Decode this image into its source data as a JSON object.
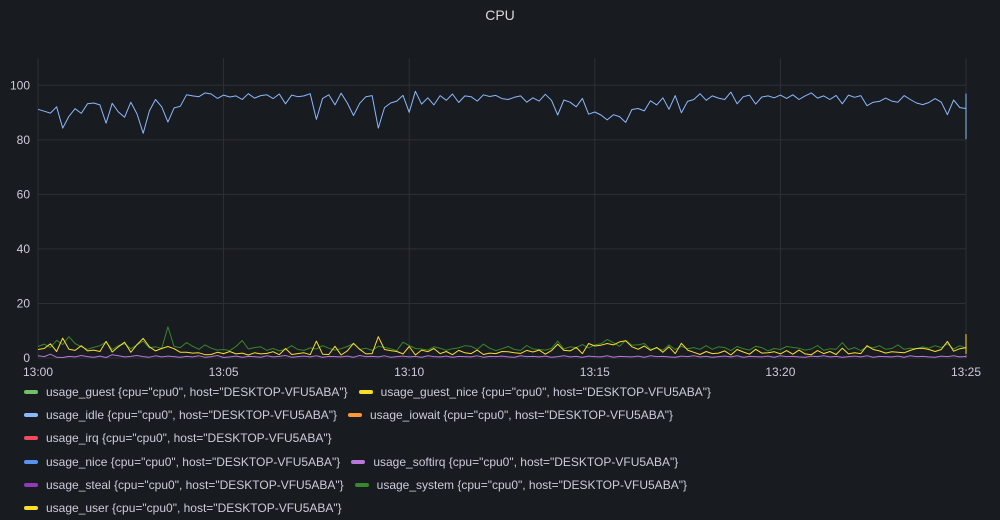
{
  "panel": {
    "title": "CPU"
  },
  "chart_data": {
    "type": "line",
    "title": "CPU",
    "x_ticks": [
      "13:00",
      "13:05",
      "13:10",
      "13:15",
      "13:20",
      "13:25"
    ],
    "y_ticks": [
      0,
      20,
      40,
      60,
      80,
      100
    ],
    "xlim_minutes": [
      0,
      25
    ],
    "ylim": [
      0,
      110
    ],
    "grid": true,
    "legend_position": "bottom",
    "sample_interval_seconds": 10,
    "series": [
      {
        "name": "usage_guest {cpu=\"cpu0\", host=\"DESKTOP-VFU5ABA\"}",
        "color": "#73bf69",
        "values": []
      },
      {
        "name": "usage_guest_nice {cpu=\"cpu0\", host=\"DESKTOP-VFU5ABA\"}",
        "color": "#fade2a",
        "values": []
      },
      {
        "name": "usage_idle {cpu=\"cpu0\", host=\"DESKTOP-VFU5ABA\"}",
        "color": "#8ab8ff",
        "values": [
          91.2,
          90.5,
          89.8,
          92.1,
          84.3,
          88.6,
          91.4,
          89.7,
          93.2,
          93.5,
          92.8,
          86.1,
          93.4,
          90.2,
          88.3,
          93.8,
          89.5,
          82.4,
          90.6,
          94.8,
          92.1,
          86.5,
          91.7,
          92.3,
          96.5,
          96.1,
          95.8,
          97.2,
          96.8,
          95.2,
          96.4,
          95.7,
          96.1,
          94.8,
          96.9,
          95.3,
          96.2,
          96.5,
          95.1,
          96.8,
          93.2,
          96.4,
          95.8,
          96.1,
          96.9,
          87.5,
          95.2,
          96.5,
          92.8,
          97.1,
          93.5,
          88.9,
          93.4,
          95.8,
          96.2,
          84.3,
          91.8,
          93.5,
          94.2,
          96.3,
          90.1,
          97.8,
          93.1,
          95.4,
          92.8,
          96.2,
          94.5,
          96.8,
          93.7,
          96.1,
          95.8,
          94.2,
          96.5,
          95.9,
          96.3,
          95.1,
          94.8,
          95.6,
          96.1,
          93.8,
          95.4,
          94.2,
          96.7,
          94.5,
          89.1,
          94.6,
          93.8,
          92.1,
          95.2,
          89.4,
          90.2,
          89.1,
          87.3,
          89.2,
          88.5,
          86.4,
          91.1,
          91.5,
          90.6,
          94.3,
          92.8,
          95.4,
          91.2,
          96.2,
          89.9,
          94.1,
          94.8,
          96.9,
          94.5,
          96.1,
          95.3,
          94.8,
          97.5,
          93.2,
          95.8,
          96.4,
          93.1,
          95.7,
          96.1,
          95.4,
          96.4,
          95.2,
          96.5,
          94.8,
          96.1,
          97.2,
          95.3,
          96.1,
          94.8,
          96.3,
          93.2,
          96.4,
          95.6,
          96.2,
          92.5,
          93.8,
          94.1,
          95.3,
          94.2,
          93.8,
          96.2,
          94.8,
          93.5,
          92.9,
          93.7,
          95.1,
          93.8,
          89.2,
          94.6,
          91.8,
          91.5,
          89.6,
          93.5,
          88.2,
          92.3,
          93.8,
          92.9,
          94.3,
          94.5,
          90.3,
          93.6,
          94.8,
          95.1,
          94.2,
          93.3,
          90.2,
          93.5,
          91.7,
          94.1,
          93.8,
          87.2,
          93.5,
          91.8,
          87.2,
          95.6,
          96.2,
          91.3,
          95.2,
          94.8,
          95.5,
          94.2,
          92.8,
          96.1,
          94.3,
          92.8,
          91.2,
          92.5,
          96.8,
          95.9,
          92.1,
          95.6,
          94.2,
          92.8,
          91.5,
          92.1,
          94.3,
          88.2,
          93.3,
          93.5,
          89.9,
          89.5,
          91.8,
          93.2,
          91.4,
          80.4,
          91.8,
          87.2,
          93.6,
          91.8,
          94.8,
          88.2,
          85.1,
          87.6,
          92.9,
          92.3,
          89.1,
          89.2,
          89.8
        ]
      },
      {
        "name": "usage_iowait {cpu=\"cpu0\", host=\"DESKTOP-VFU5ABA\"}",
        "color": "#ff9830",
        "values": []
      },
      {
        "name": "usage_irq {cpu=\"cpu0\", host=\"DESKTOP-VFU5ABA\"}",
        "color": "#f2495c",
        "values": []
      },
      {
        "name": "usage_nice {cpu=\"cpu0\", host=\"DESKTOP-VFU5ABA\"}",
        "color": "#5794f2",
        "values": []
      },
      {
        "name": "usage_softirq {cpu=\"cpu0\", host=\"DESKTOP-VFU5ABA\"}",
        "color": "#b877d9",
        "values": [
          0.8,
          0.5,
          1.4,
          0.3,
          0.2,
          0.6,
          0.4,
          0.9,
          0.5,
          0.3,
          0.7,
          0.2,
          1.2,
          0.8,
          0.4,
          0.6,
          0.9,
          0.5,
          0.3,
          0.8,
          0.4,
          0.7,
          0.5,
          0.3,
          0.6,
          0.4,
          0.8,
          0.3,
          0.5,
          0.9,
          0.2,
          0.4,
          0.7,
          0.3,
          0.6,
          0.5,
          0.3,
          0.8,
          0.4,
          0.6,
          0.9,
          0.3,
          0.5,
          0.7,
          0.4,
          0.8,
          0.3,
          0.6,
          0.5,
          0.4,
          0.7,
          0.3,
          0.9,
          0.5,
          0.6,
          0.4,
          0.8,
          0.3,
          0.5,
          0.7,
          0.4,
          0.6,
          0.3,
          0.8,
          0.5,
          0.4,
          0.7,
          0.3,
          0.6,
          0.5,
          0.4,
          0.8,
          0.3,
          0.6,
          0.5,
          0.7,
          0.4,
          0.3,
          0.8,
          0.5,
          0.6,
          0.4,
          0.7,
          0.3,
          0.5,
          0.8,
          0.4,
          0.6,
          0.3,
          0.7,
          0.5,
          0.4,
          0.8,
          0.3,
          0.6,
          0.5,
          0.4,
          0.7,
          0.3,
          0.8,
          0.5,
          0.6,
          0.4,
          0.3,
          0.7,
          0.5,
          0.8,
          0.4,
          0.6,
          0.3,
          0.5,
          0.7,
          0.4,
          0.8,
          0.3,
          0.6,
          0.5,
          0.4,
          0.7,
          0.3,
          0.8,
          0.5,
          0.6,
          0.4,
          0.3,
          0.7,
          0.5,
          0.8,
          0.4,
          0.6,
          0.3,
          0.5,
          0.7,
          0.4,
          0.8,
          0.3,
          0.6,
          0.5,
          0.4,
          0.7,
          0.3,
          0.8,
          0.5,
          0.6,
          0.4,
          0.3,
          0.7,
          0.5,
          0.8,
          0.4,
          0.6,
          0.3,
          0.5,
          0.7,
          0.4,
          0.8,
          0.3,
          0.6,
          0.5,
          0.4,
          0.7,
          0.3,
          0.8,
          0.5,
          0.6,
          0.4,
          0.3,
          0.7,
          0.5,
          0.8,
          0.4,
          0.6,
          0.3,
          0.5,
          0.7,
          0.4,
          0.8,
          0.3,
          0.6,
          0.5,
          0.4,
          0.7,
          0.3,
          0.8,
          0.5,
          0.6,
          0.4,
          0.3,
          0.7,
          0.5,
          0.8,
          0.4,
          0.6,
          0.3,
          0.5,
          0.7,
          0.4,
          0.8,
          0.3,
          0.6,
          0.5,
          0.4,
          0.7,
          0.3,
          0.8,
          0.5,
          0.6,
          0.4,
          0.3,
          0.7,
          0.5,
          0.8,
          0.4,
          0.6,
          0.3,
          0.5,
          0.7,
          0.4,
          0.8,
          0.3,
          0.6,
          0.5,
          0.4,
          0.7,
          0.3,
          0.8,
          0.5,
          0.6,
          0.4,
          0.3,
          0.7,
          0.5,
          0.8,
          0.4,
          0.6,
          0.3,
          0.5,
          0.7,
          0.4,
          0.8,
          0.3,
          0.6,
          0.5
        ]
      },
      {
        "name": "usage_steal {cpu=\"cpu0\", host=\"DESKTOP-VFU5ABA\"}",
        "color": "#8f3bb8",
        "values": []
      },
      {
        "name": "usage_system {cpu=\"cpu0\", host=\"DESKTOP-VFU5ABA\"}",
        "color": "#37872d",
        "values": [
          4.2,
          5.1,
          3.8,
          6.5,
          4.9,
          7.8,
          5.3,
          4.1,
          3.2,
          3.9,
          4.5,
          5.8,
          3.1,
          4.6,
          5.2,
          3.4,
          4.8,
          6.2,
          3.7,
          4.1,
          3.5,
          11.4,
          4.2,
          3.8,
          5.7,
          4.3,
          3.2,
          4.8,
          3.6,
          2.9,
          3.1,
          2.7,
          4.2,
          6.4,
          3.3,
          3.8,
          4.1,
          2.8,
          3.5,
          2.6,
          3.2,
          4.5,
          3.1,
          2.8,
          3.7,
          3.3,
          4.5,
          3.6,
          2.9,
          3.4,
          4.2,
          5.3,
          3.1,
          3.6,
          2.8,
          4.3,
          3.9,
          3.4,
          2.7,
          5.8,
          4.6,
          3.5,
          3.3,
          2.9,
          4.1,
          3.6,
          2.8,
          3.4,
          3.7,
          4.5,
          4.3,
          3.1,
          5.1,
          3.6,
          2.7,
          3.4,
          4.2,
          3.1,
          2.8,
          4.6,
          3.3,
          3.1,
          2.9,
          3.5,
          6.2,
          3.3,
          4.1,
          3.8,
          4.9,
          3.7,
          4.8,
          5.2,
          6.8,
          5.6,
          4.3,
          6.5,
          4.7,
          4.8,
          5.3,
          3.2,
          3.6,
          2.9,
          4.8,
          3.1,
          4.3,
          3.4,
          3.8,
          3.2,
          4.5,
          3.2,
          4.1,
          3.8,
          2.7,
          4.2,
          3.4,
          2.9,
          4.3,
          3.8,
          2.6,
          3.5,
          3.1,
          4.2,
          3.9,
          3.6,
          2.9,
          3.3,
          4.6,
          2.8,
          3.4,
          3.2,
          5.6,
          3.1,
          3.8,
          2.7,
          4.1,
          3.7,
          4.5,
          3.2,
          3.5,
          4.8,
          3.2,
          3.6,
          3.4,
          4.1,
          3.6,
          4.5,
          3.8,
          5.2,
          3.3,
          4.5,
          3.6,
          4.4,
          3.5,
          5.6,
          3.9,
          3.2,
          3.4,
          2.8,
          4.2,
          3.3,
          2.8,
          3.5,
          3.9,
          2.6,
          3.2,
          5.1,
          3.4,
          4.3,
          3.6,
          2.9,
          6.1,
          3.8,
          4.6,
          5.7,
          3.2,
          2.9,
          4.8,
          3.5,
          3.1,
          3.6,
          4.4,
          3.6,
          2.9,
          3.4,
          4.6,
          3.8,
          3.2,
          2.8,
          4.2,
          4.1,
          3.5,
          4.9,
          5.4,
          3.7,
          4.2,
          6.1,
          3.7,
          3.4,
          4.2,
          5.8,
          5.1,
          4.9,
          6.3,
          3.2,
          5.6,
          5.9,
          4.1,
          3.1,
          4.7,
          5.4,
          4.3,
          6.8,
          4.8,
          4.2,
          5.3,
          6.7,
          5.5,
          4.6
        ]
      },
      {
        "name": "usage_user {cpu=\"cpu0\", host=\"DESKTOP-VFU5ABA\"}",
        "color": "#fade2a",
        "values": [
          3.1,
          3.5,
          5.2,
          2.4,
          7.3,
          3.2,
          2.8,
          4.5,
          2.6,
          2.9,
          2.4,
          6.1,
          2.2,
          4.1,
          5.8,
          2.1,
          4.9,
          7.2,
          4.1,
          2.6,
          3.5,
          4.2,
          3.4,
          2.1,
          2.1,
          1.8,
          1.9,
          1.2,
          1.3,
          2.1,
          1.6,
          2.4,
          1.5,
          1.8,
          1.1,
          1.9,
          1.5,
          1.7,
          2.3,
          1.2,
          3.5,
          1.3,
          1.6,
          1.9,
          1.2,
          6.2,
          1.4,
          1.3,
          4.3,
          1.1,
          2.6,
          5.4,
          3.2,
          1.5,
          1.6,
          7.8,
          3.1,
          2.7,
          2.4,
          1.5,
          4.2,
          1.1,
          2.9,
          2.3,
          3.5,
          1.6,
          2.4,
          1.2,
          2.8,
          1.9,
          1.6,
          2.9,
          1.3,
          1.8,
          1.6,
          2.4,
          2.3,
          1.9,
          1.7,
          2.8,
          2.2,
          2.9,
          1.4,
          2.7,
          5.1,
          2.8,
          2.6,
          3.9,
          1.6,
          5.3,
          4.4,
          4.7,
          5.3,
          4.8,
          5.9,
          6.3,
          4.1,
          3.2,
          4.4,
          2.8,
          3.9,
          2.1,
          4.1,
          1.6,
          5.4,
          2.9,
          2.1,
          1.3,
          2.4,
          1.6,
          1.8,
          2.6,
          1.1,
          3.1,
          2.2,
          1.4,
          3.2,
          1.8,
          1.9,
          2.3,
          1.5,
          2.7,
          1.4,
          2.9,
          1.5,
          1.2,
          2.7,
          1.6,
          2.4,
          1.3,
          3.6,
          1.5,
          1.9,
          1.6,
          4.5,
          3.1,
          2.6,
          1.8,
          2.3,
          2.1,
          1.9,
          2.8,
          3.5,
          3.6,
          3.1,
          2.4,
          3.1,
          6.1,
          2.5,
          3.4,
          3.8,
          5.9,
          3.3,
          6.8,
          3.9,
          2.5,
          3.2,
          1.8,
          2.6,
          6.2,
          3.5,
          2.3,
          1.9,
          2.9,
          2.6,
          5.1,
          3.4,
          4.6,
          2.7,
          2.6,
          7.1,
          2.8,
          3.9,
          7.4,
          1.9,
          1.7,
          5.6,
          1.8,
          2.5,
          2.2,
          2.8,
          3.9,
          2.7,
          4.8,
          3.1,
          1.6,
          1.8,
          3.6,
          2.4,
          1.9,
          3.1,
          3.6,
          8.1,
          2.4,
          3.4,
          2.5,
          4.3,
          4.2,
          2.9,
          4.1,
          5.3,
          5.5,
          3.1,
          4.7,
          2.6,
          8.6,
          4.1,
          2.3,
          4.1,
          2.6,
          6.5,
          3.9,
          8.2,
          4.8,
          3.6,
          3.7,
          5.2,
          4.8,
          4.5
        ]
      }
    ]
  }
}
